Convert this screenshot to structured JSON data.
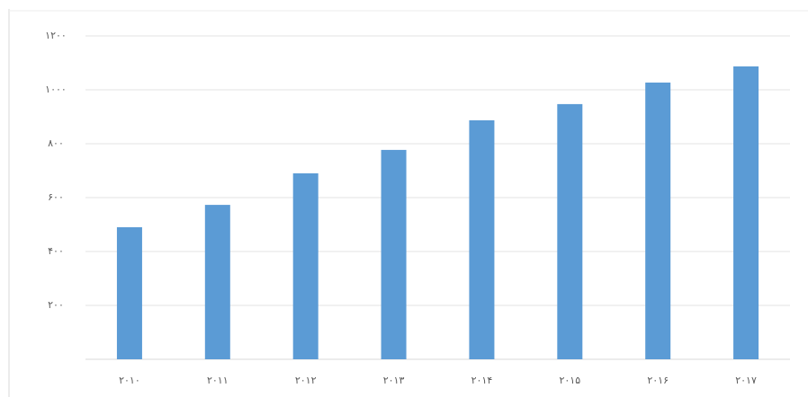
{
  "chart_data": {
    "type": "bar",
    "categories": [
      "۲۰۱۰",
      "۲۰۱۱",
      "۲۰۱۲",
      "۲۰۱۳",
      "۲۰۱۴",
      "۲۰۱۵",
      "۲۰۱۶",
      "۲۰۱۷"
    ],
    "values": [
      490,
      573,
      690,
      777,
      887,
      947,
      1027,
      1087
    ],
    "color": "#5b9bd5",
    "ylim": [
      0,
      1200
    ],
    "yticks": [
      {
        "value": 200,
        "label": "۲۰۰"
      },
      {
        "value": 400,
        "label": "۴۰۰"
      },
      {
        "value": 600,
        "label": "۶۰۰"
      },
      {
        "value": 800,
        "label": "۸۰۰"
      },
      {
        "value": 1000,
        "label": "۱۰۰۰"
      },
      {
        "value": 1200,
        "label": "۱۲۰۰"
      }
    ],
    "grid": true
  }
}
